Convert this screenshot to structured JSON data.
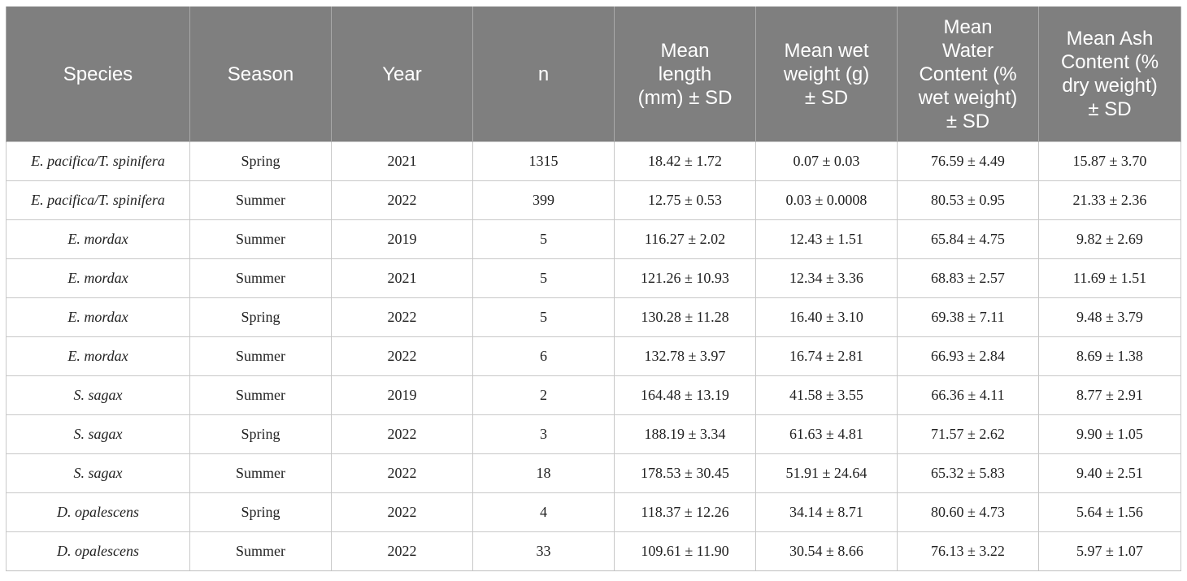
{
  "table": {
    "headers": [
      "Species",
      "Season",
      "Year",
      "n",
      "Mean\nlength\n(mm) ± SD",
      "Mean wet\nweight (g)\n± SD",
      "Mean\nWater\nContent (%\nwet weight)\n± SD",
      "Mean Ash\nContent (%\ndry weight)\n± SD"
    ],
    "rows": [
      [
        "E. pacifica/T. spinifera",
        "Spring",
        "2021",
        "1315",
        "18.42 ± 1.72",
        "0.07 ± 0.03",
        "76.59 ± 4.49",
        "15.87 ± 3.70"
      ],
      [
        "E. pacifica/T. spinifera",
        "Summer",
        "2022",
        "399",
        "12.75 ± 0.53",
        "0.03 ± 0.0008",
        "80.53 ± 0.95",
        "21.33 ± 2.36"
      ],
      [
        "E. mordax",
        "Summer",
        "2019",
        "5",
        "116.27 ± 2.02",
        "12.43 ± 1.51",
        "65.84 ± 4.75",
        "9.82 ± 2.69"
      ],
      [
        "E. mordax",
        "Summer",
        "2021",
        "5",
        "121.26 ± 10.93",
        "12.34 ± 3.36",
        "68.83 ± 2.57",
        "11.69 ± 1.51"
      ],
      [
        "E. mordax",
        "Spring",
        "2022",
        "5",
        "130.28 ± 11.28",
        "16.40 ± 3.10",
        "69.38 ± 7.11",
        "9.48 ± 3.79"
      ],
      [
        "E. mordax",
        "Summer",
        "2022",
        "6",
        "132.78 ± 3.97",
        "16.74 ± 2.81",
        "66.93 ± 2.84",
        "8.69 ± 1.38"
      ],
      [
        "S. sagax",
        "Summer",
        "2019",
        "2",
        "164.48 ± 13.19",
        "41.58 ± 3.55",
        "66.36 ± 4.11",
        "8.77 ± 2.91"
      ],
      [
        "S. sagax",
        "Spring",
        "2022",
        "3",
        "188.19 ± 3.34",
        "61.63 ± 4.81",
        "71.57 ± 2.62",
        "9.90 ± 1.05"
      ],
      [
        "S. sagax",
        "Summer",
        "2022",
        "18",
        "178.53 ± 30.45",
        "51.91 ± 24.64",
        "65.32 ± 5.83",
        "9.40 ± 2.51"
      ],
      [
        "D. opalescens",
        "Spring",
        "2022",
        "4",
        "118.37 ± 12.26",
        "34.14 ± 8.71",
        "80.60 ± 4.73",
        "5.64 ± 1.56"
      ],
      [
        "D. opalescens",
        "Summer",
        "2022",
        "33",
        "109.61 ± 11.90",
        "30.54 ± 8.66",
        "76.13 ± 3.22",
        "5.97 ± 1.07"
      ]
    ]
  },
  "colors": {
    "header_bg": "#7f7f7f",
    "header_text": "#ffffff",
    "grid": "#c8c8c8"
  }
}
